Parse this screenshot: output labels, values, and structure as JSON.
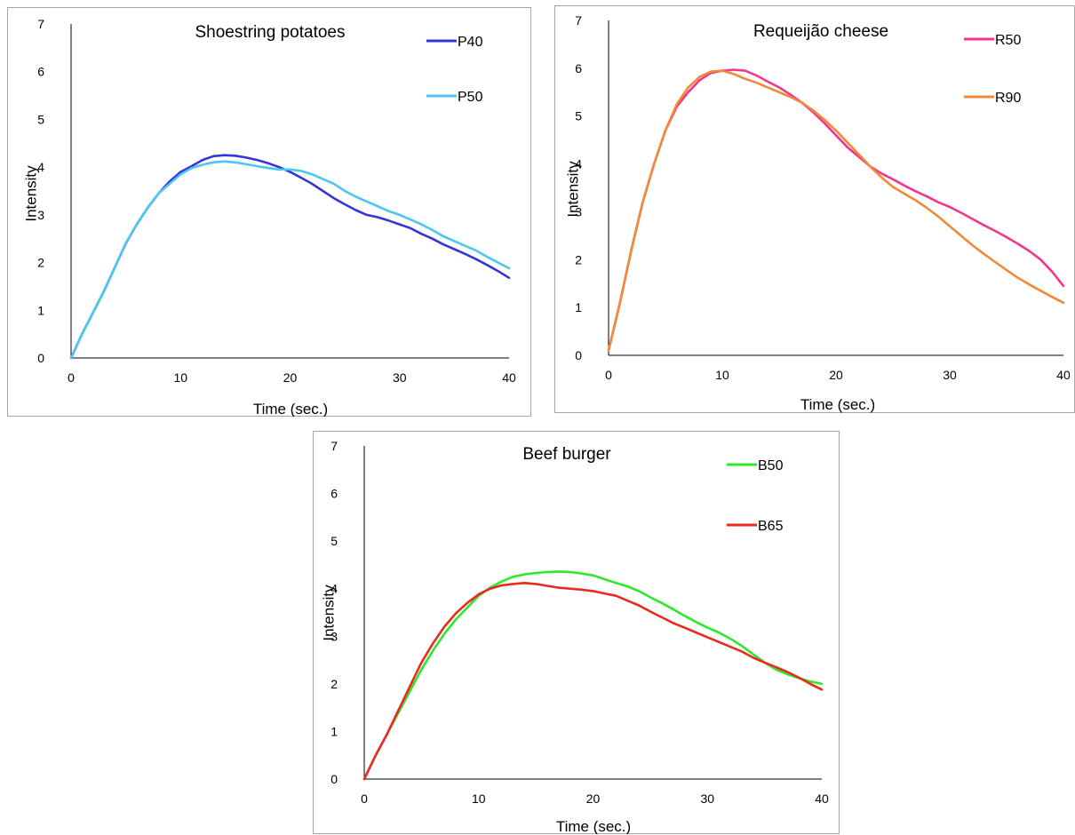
{
  "chart_data": [
    {
      "type": "line",
      "title": "Shoestring potatoes",
      "xlabel": "Time (sec.)",
      "ylabel": "Intensity",
      "xlim": [
        0,
        40
      ],
      "ylim": [
        0,
        7
      ],
      "x_ticks": [
        0,
        10,
        20,
        30,
        40
      ],
      "y_ticks": [
        0,
        1,
        2,
        3,
        4,
        5,
        6,
        7
      ],
      "grid": false,
      "legend_position": "top-right",
      "series": [
        {
          "name": "P40",
          "color": "#3535d6",
          "x": [
            0,
            1,
            2,
            3,
            4,
            5,
            6,
            7,
            8,
            9,
            10,
            11,
            12,
            13,
            14,
            15,
            16,
            17,
            18,
            19,
            20,
            21,
            22,
            23,
            24,
            25,
            26,
            27,
            28,
            29,
            30,
            31,
            32,
            33,
            34,
            35,
            36,
            37,
            38,
            39,
            40
          ],
          "values": [
            0,
            0.5,
            0.95,
            1.4,
            1.9,
            2.4,
            2.8,
            3.15,
            3.45,
            3.7,
            3.9,
            4.02,
            4.15,
            4.23,
            4.25,
            4.24,
            4.2,
            4.15,
            4.08,
            4.0,
            3.9,
            3.78,
            3.65,
            3.5,
            3.35,
            3.22,
            3.1,
            3.0,
            2.95,
            2.88,
            2.8,
            2.72,
            2.6,
            2.5,
            2.38,
            2.28,
            2.18,
            2.07,
            1.95,
            1.82,
            1.68
          ]
        },
        {
          "name": "P50",
          "color": "#4cc6f0",
          "x": [
            0,
            1,
            2,
            3,
            4,
            5,
            6,
            7,
            8,
            9,
            10,
            11,
            12,
            13,
            14,
            15,
            16,
            17,
            18,
            19,
            20,
            21,
            22,
            23,
            24,
            25,
            26,
            27,
            28,
            29,
            30,
            31,
            32,
            33,
            34,
            35,
            36,
            37,
            38,
            39,
            40
          ],
          "values": [
            0,
            0.5,
            0.95,
            1.4,
            1.9,
            2.4,
            2.8,
            3.15,
            3.45,
            3.65,
            3.85,
            3.98,
            4.05,
            4.1,
            4.12,
            4.1,
            4.06,
            4.02,
            3.98,
            3.95,
            3.95,
            3.92,
            3.85,
            3.75,
            3.65,
            3.5,
            3.38,
            3.28,
            3.18,
            3.08,
            3.0,
            2.9,
            2.8,
            2.68,
            2.55,
            2.45,
            2.35,
            2.25,
            2.12,
            2.0,
            1.88
          ]
        }
      ]
    },
    {
      "type": "line",
      "title": "Requeijão cheese",
      "xlabel": "Time (sec.)",
      "ylabel": "Intensity",
      "xlim": [
        0,
        40
      ],
      "ylim": [
        0,
        7
      ],
      "x_ticks": [
        0,
        10,
        20,
        30,
        40
      ],
      "y_ticks": [
        0,
        1,
        2,
        3,
        4,
        5,
        6,
        7
      ],
      "grid": false,
      "legend_position": "top-right",
      "series": [
        {
          "name": "R50",
          "color": "#f0378a",
          "x": [
            0,
            1,
            2,
            3,
            4,
            5,
            6,
            7,
            8,
            9,
            10,
            11,
            12,
            13,
            14,
            15,
            16,
            17,
            18,
            19,
            20,
            21,
            22,
            23,
            24,
            25,
            26,
            27,
            28,
            29,
            30,
            31,
            32,
            33,
            34,
            35,
            36,
            37,
            38,
            39,
            40
          ],
          "values": [
            0.1,
            1.1,
            2.2,
            3.2,
            4.0,
            4.7,
            5.2,
            5.5,
            5.75,
            5.9,
            5.95,
            5.97,
            5.95,
            5.85,
            5.72,
            5.6,
            5.45,
            5.28,
            5.08,
            4.85,
            4.6,
            4.35,
            4.15,
            3.95,
            3.8,
            3.68,
            3.55,
            3.43,
            3.32,
            3.2,
            3.1,
            2.98,
            2.85,
            2.72,
            2.6,
            2.47,
            2.33,
            2.18,
            2.0,
            1.75,
            1.45
          ]
        },
        {
          "name": "R90",
          "color": "#ef8a3a",
          "x": [
            0,
            1,
            2,
            3,
            4,
            5,
            6,
            7,
            8,
            9,
            10,
            11,
            12,
            13,
            14,
            15,
            16,
            17,
            18,
            19,
            20,
            21,
            22,
            23,
            24,
            25,
            26,
            27,
            28,
            29,
            30,
            31,
            32,
            33,
            34,
            35,
            36,
            37,
            38,
            39,
            40
          ],
          "values": [
            0.1,
            1.1,
            2.2,
            3.2,
            4.0,
            4.7,
            5.25,
            5.6,
            5.82,
            5.93,
            5.95,
            5.88,
            5.78,
            5.7,
            5.6,
            5.5,
            5.4,
            5.28,
            5.12,
            4.92,
            4.7,
            4.45,
            4.2,
            3.95,
            3.72,
            3.52,
            3.38,
            3.24,
            3.08,
            2.9,
            2.7,
            2.5,
            2.3,
            2.12,
            1.95,
            1.78,
            1.62,
            1.48,
            1.35,
            1.22,
            1.1
          ]
        }
      ]
    },
    {
      "type": "line",
      "title": "Beef burger",
      "xlabel": "Time (sec.)",
      "ylabel": "Intensity",
      "xlim": [
        0,
        40
      ],
      "ylim": [
        0,
        7
      ],
      "x_ticks": [
        0,
        10,
        20,
        30,
        40
      ],
      "y_ticks": [
        0,
        1,
        2,
        3,
        4,
        5,
        6,
        7
      ],
      "grid": false,
      "legend_position": "top-right",
      "series": [
        {
          "name": "B50",
          "color": "#2ee82e",
          "x": [
            0,
            1,
            2,
            3,
            4,
            5,
            6,
            7,
            8,
            9,
            10,
            11,
            12,
            13,
            14,
            15,
            16,
            17,
            18,
            19,
            20,
            21,
            22,
            23,
            24,
            25,
            26,
            27,
            28,
            29,
            30,
            31,
            32,
            33,
            34,
            35,
            36,
            37,
            38,
            39,
            40
          ],
          "values": [
            0,
            0.5,
            0.95,
            1.4,
            1.85,
            2.3,
            2.7,
            3.05,
            3.35,
            3.6,
            3.85,
            4.02,
            4.15,
            4.25,
            4.3,
            4.33,
            4.35,
            4.36,
            4.35,
            4.32,
            4.28,
            4.2,
            4.12,
            4.05,
            3.95,
            3.82,
            3.7,
            3.57,
            3.43,
            3.3,
            3.18,
            3.08,
            2.95,
            2.8,
            2.62,
            2.45,
            2.3,
            2.2,
            2.12,
            2.05,
            2.0
          ]
        },
        {
          "name": "B65",
          "color": "#e82a1f",
          "x": [
            0,
            1,
            2,
            3,
            4,
            5,
            6,
            7,
            8,
            9,
            10,
            11,
            12,
            13,
            14,
            15,
            16,
            17,
            18,
            19,
            20,
            21,
            22,
            23,
            24,
            25,
            26,
            27,
            28,
            29,
            30,
            31,
            32,
            33,
            34,
            35,
            36,
            37,
            38,
            39,
            40
          ],
          "values": [
            0,
            0.5,
            0.95,
            1.45,
            1.95,
            2.45,
            2.85,
            3.2,
            3.48,
            3.7,
            3.88,
            4.0,
            4.07,
            4.1,
            4.12,
            4.1,
            4.06,
            4.02,
            4.0,
            3.98,
            3.95,
            3.9,
            3.85,
            3.75,
            3.65,
            3.52,
            3.4,
            3.28,
            3.18,
            3.08,
            2.98,
            2.88,
            2.78,
            2.68,
            2.55,
            2.45,
            2.35,
            2.25,
            2.13,
            2.0,
            1.88
          ]
        }
      ]
    }
  ]
}
